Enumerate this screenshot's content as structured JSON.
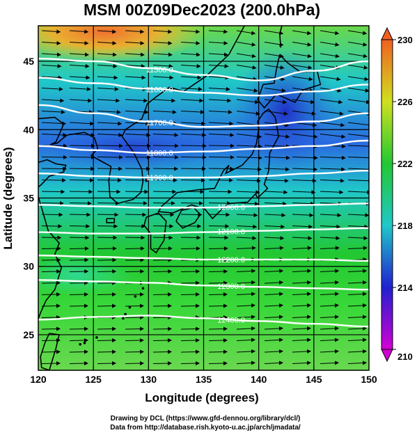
{
  "title": "MSM 00Z09Dec2023 (200.0hPa)",
  "xlabel": "Longitude (degrees)",
  "ylabel": "Latitude  (degrees)",
  "credits": [
    "Drawing by DCL (https://www.gfd-dennou.org/library/dcl/)",
    "Data from http://database.rish.kyoto-u.ac.jp/arch/jmadata/"
  ],
  "colors": {
    "contour": "#ffffff",
    "coast": "#000000",
    "vector": "#000000"
  },
  "chart_data": {
    "type": "heatmap",
    "title": "MSM 00Z09Dec2023 (200.0hPa)",
    "xlabel": "Longitude (degrees)",
    "ylabel": "Latitude  (degrees)",
    "xlim": [
      120,
      150
    ],
    "ylim": [
      22.4,
      47.6
    ],
    "xticks": [
      120,
      125,
      130,
      135,
      140,
      145,
      150
    ],
    "yticks": [
      25,
      30,
      35,
      40,
      45
    ],
    "colorbar": {
      "min": 210,
      "max": 230,
      "ticks": [
        210,
        214,
        218,
        222,
        226,
        230
      ],
      "colors": [
        "#d400d4",
        "#2020d0",
        "#20c8c8",
        "#22c832",
        "#d0e020",
        "#f06020"
      ]
    },
    "contours": [
      {
        "label": "11500.0",
        "lats": [
          45.2,
          45.0,
          44.5,
          44.0,
          43.6,
          44.3,
          45.0
        ]
      },
      {
        "label": "11600.0",
        "lats": [
          43.8,
          43.4,
          43.0,
          42.7,
          42.5,
          42.8,
          43.3
        ]
      },
      {
        "label": "11700.0",
        "lats": [
          41.8,
          41.2,
          40.6,
          40.2,
          40.3,
          40.6,
          41.2
        ]
      },
      {
        "label": "11800.0",
        "lats": [
          38.8,
          38.5,
          38.3,
          38.4,
          38.6,
          38.8,
          39.2
        ]
      },
      {
        "label": "11900.0",
        "lats": [
          36.8,
          36.6,
          36.5,
          36.5,
          36.6,
          36.8,
          37.0
        ]
      },
      {
        "label": "12000.0",
        "lats": [
          34.5,
          34.4,
          34.3,
          34.3,
          34.4,
          34.5,
          34.6
        ]
      },
      {
        "label": "12100.0",
        "lats": [
          32.5,
          32.4,
          32.4,
          32.5,
          32.6,
          32.7,
          32.8
        ]
      },
      {
        "label": "12200.0",
        "lats": [
          30.8,
          30.7,
          30.6,
          30.5,
          30.5,
          30.5,
          30.4
        ]
      },
      {
        "label": "12300.0",
        "lats": [
          29.0,
          28.9,
          28.8,
          28.6,
          28.5,
          28.4,
          28.3
        ]
      },
      {
        "label": "12400.0",
        "lats": [
          26.1,
          26.3,
          26.4,
          26.2,
          26.0,
          25.8,
          25.6
        ]
      }
    ],
    "contour_lons": [
      120,
      125,
      130,
      135,
      140,
      145,
      150
    ],
    "wind_direction": "westerly"
  }
}
